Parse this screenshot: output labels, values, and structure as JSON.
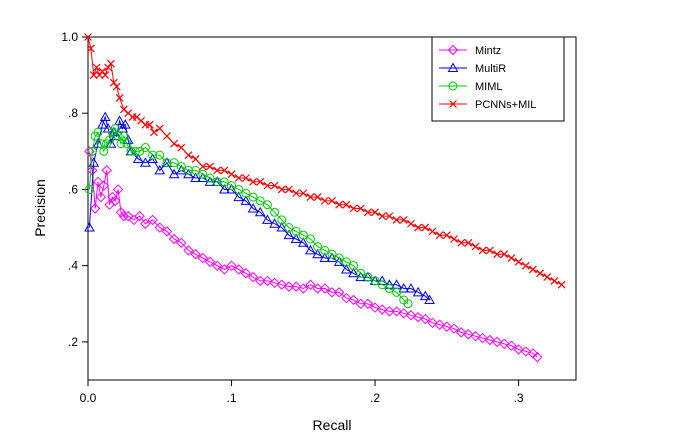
{
  "chart_data": {
    "type": "line",
    "xlabel": "Recall",
    "ylabel": "Precision",
    "xlim": [
      0,
      0.34
    ],
    "ylim": [
      0.1,
      1.0
    ],
    "xticks": [
      {
        "value": 0.0,
        "label": "0.0"
      },
      {
        "value": 0.1,
        "label": ".1"
      },
      {
        "value": 0.2,
        "label": ".2"
      },
      {
        "value": 0.3,
        "label": ".3"
      }
    ],
    "yticks": [
      {
        "value": 0.2,
        "label": ".2"
      },
      {
        "value": 0.4,
        "label": ".4"
      },
      {
        "value": 0.6,
        "label": ".6"
      },
      {
        "value": 0.8,
        "label": ".8"
      },
      {
        "value": 1.0,
        "label": "1.0"
      }
    ],
    "grid": false,
    "legend_position": "top-right",
    "series": [
      {
        "name": "Mintz",
        "color": "#ff00ff",
        "marker": "diamond",
        "x": [
          0.001,
          0.003,
          0.005,
          0.007,
          0.009,
          0.011,
          0.013,
          0.015,
          0.017,
          0.019,
          0.021,
          0.023,
          0.025,
          0.028,
          0.032,
          0.036,
          0.04,
          0.045,
          0.05,
          0.055,
          0.06,
          0.065,
          0.07,
          0.075,
          0.08,
          0.085,
          0.09,
          0.095,
          0.1,
          0.105,
          0.11,
          0.115,
          0.12,
          0.125,
          0.13,
          0.135,
          0.14,
          0.145,
          0.15,
          0.155,
          0.16,
          0.165,
          0.17,
          0.175,
          0.18,
          0.185,
          0.19,
          0.195,
          0.2,
          0.205,
          0.21,
          0.215,
          0.22,
          0.225,
          0.23,
          0.235,
          0.24,
          0.245,
          0.25,
          0.255,
          0.26,
          0.265,
          0.27,
          0.275,
          0.28,
          0.285,
          0.29,
          0.295,
          0.3,
          0.305,
          0.31,
          0.313
        ],
        "y": [
          0.7,
          0.65,
          0.55,
          0.62,
          0.58,
          0.61,
          0.65,
          0.56,
          0.58,
          0.57,
          0.6,
          0.54,
          0.53,
          0.53,
          0.52,
          0.53,
          0.51,
          0.52,
          0.5,
          0.49,
          0.47,
          0.46,
          0.44,
          0.43,
          0.42,
          0.41,
          0.4,
          0.39,
          0.4,
          0.39,
          0.38,
          0.37,
          0.36,
          0.36,
          0.355,
          0.35,
          0.345,
          0.345,
          0.34,
          0.35,
          0.34,
          0.34,
          0.33,
          0.33,
          0.315,
          0.31,
          0.3,
          0.3,
          0.29,
          0.285,
          0.28,
          0.28,
          0.275,
          0.27,
          0.265,
          0.26,
          0.25,
          0.245,
          0.24,
          0.235,
          0.225,
          0.22,
          0.215,
          0.21,
          0.205,
          0.2,
          0.195,
          0.19,
          0.18,
          0.175,
          0.17,
          0.16
        ]
      },
      {
        "name": "MultiR",
        "color": "#0000ff",
        "marker": "triangle",
        "x": [
          0.001,
          0.004,
          0.007,
          0.01,
          0.012,
          0.014,
          0.016,
          0.018,
          0.02,
          0.022,
          0.024,
          0.026,
          0.028,
          0.03,
          0.035,
          0.04,
          0.045,
          0.05,
          0.055,
          0.06,
          0.065,
          0.07,
          0.075,
          0.08,
          0.085,
          0.09,
          0.095,
          0.1,
          0.105,
          0.11,
          0.115,
          0.12,
          0.125,
          0.13,
          0.135,
          0.14,
          0.145,
          0.15,
          0.155,
          0.16,
          0.165,
          0.17,
          0.175,
          0.18,
          0.185,
          0.19,
          0.195,
          0.2,
          0.205,
          0.21,
          0.215,
          0.22,
          0.225,
          0.23,
          0.235,
          0.238
        ],
        "y": [
          0.5,
          0.67,
          0.72,
          0.77,
          0.79,
          0.76,
          0.72,
          0.75,
          0.74,
          0.78,
          0.76,
          0.77,
          0.73,
          0.7,
          0.68,
          0.67,
          0.68,
          0.65,
          0.67,
          0.64,
          0.65,
          0.64,
          0.63,
          0.63,
          0.62,
          0.62,
          0.6,
          0.6,
          0.58,
          0.57,
          0.55,
          0.54,
          0.52,
          0.51,
          0.5,
          0.48,
          0.47,
          0.46,
          0.44,
          0.43,
          0.42,
          0.42,
          0.41,
          0.39,
          0.38,
          0.37,
          0.37,
          0.36,
          0.36,
          0.35,
          0.35,
          0.34,
          0.34,
          0.33,
          0.32,
          0.31
        ]
      },
      {
        "name": "MIML",
        "color": "#00cc00",
        "marker": "circle",
        "x": [
          0.001,
          0.003,
          0.005,
          0.007,
          0.009,
          0.011,
          0.013,
          0.015,
          0.017,
          0.019,
          0.021,
          0.023,
          0.025,
          0.027,
          0.03,
          0.033,
          0.036,
          0.04,
          0.045,
          0.05,
          0.055,
          0.06,
          0.065,
          0.07,
          0.075,
          0.08,
          0.085,
          0.09,
          0.095,
          0.1,
          0.105,
          0.11,
          0.115,
          0.12,
          0.125,
          0.13,
          0.135,
          0.14,
          0.145,
          0.15,
          0.155,
          0.16,
          0.165,
          0.17,
          0.175,
          0.18,
          0.185,
          0.19,
          0.195,
          0.2,
          0.205,
          0.21,
          0.215,
          0.22,
          0.223
        ],
        "y": [
          0.6,
          0.7,
          0.74,
          0.75,
          0.72,
          0.7,
          0.72,
          0.73,
          0.75,
          0.76,
          0.74,
          0.72,
          0.74,
          0.72,
          0.7,
          0.7,
          0.7,
          0.71,
          0.69,
          0.69,
          0.67,
          0.67,
          0.66,
          0.65,
          0.65,
          0.64,
          0.63,
          0.62,
          0.62,
          0.61,
          0.6,
          0.59,
          0.58,
          0.57,
          0.56,
          0.54,
          0.52,
          0.5,
          0.49,
          0.48,
          0.47,
          0.45,
          0.44,
          0.43,
          0.42,
          0.41,
          0.4,
          0.38,
          0.37,
          0.36,
          0.35,
          0.34,
          0.33,
          0.31,
          0.3
        ]
      },
      {
        "name": "PCNNs+MIL",
        "color": "#ff0000",
        "marker": "x",
        "x": [
          0.0,
          0.002,
          0.004,
          0.006,
          0.008,
          0.01,
          0.012,
          0.014,
          0.016,
          0.018,
          0.02,
          0.022,
          0.025,
          0.028,
          0.031,
          0.034,
          0.037,
          0.04,
          0.043,
          0.046,
          0.05,
          0.055,
          0.06,
          0.065,
          0.07,
          0.075,
          0.08,
          0.085,
          0.09,
          0.095,
          0.1,
          0.105,
          0.11,
          0.115,
          0.12,
          0.125,
          0.13,
          0.135,
          0.14,
          0.145,
          0.15,
          0.155,
          0.16,
          0.165,
          0.17,
          0.175,
          0.18,
          0.185,
          0.19,
          0.195,
          0.2,
          0.205,
          0.21,
          0.215,
          0.22,
          0.225,
          0.23,
          0.235,
          0.24,
          0.245,
          0.25,
          0.255,
          0.26,
          0.265,
          0.27,
          0.275,
          0.28,
          0.285,
          0.29,
          0.295,
          0.3,
          0.305,
          0.31,
          0.315,
          0.32,
          0.325,
          0.33
        ],
        "y": [
          1.0,
          0.97,
          0.9,
          0.92,
          0.9,
          0.91,
          0.9,
          0.92,
          0.93,
          0.88,
          0.87,
          0.84,
          0.81,
          0.8,
          0.79,
          0.79,
          0.78,
          0.77,
          0.77,
          0.75,
          0.76,
          0.74,
          0.72,
          0.71,
          0.69,
          0.68,
          0.66,
          0.66,
          0.65,
          0.65,
          0.64,
          0.63,
          0.63,
          0.62,
          0.62,
          0.61,
          0.61,
          0.6,
          0.6,
          0.59,
          0.59,
          0.58,
          0.58,
          0.57,
          0.57,
          0.56,
          0.56,
          0.55,
          0.55,
          0.54,
          0.54,
          0.53,
          0.53,
          0.52,
          0.52,
          0.51,
          0.5,
          0.5,
          0.49,
          0.48,
          0.48,
          0.47,
          0.46,
          0.46,
          0.45,
          0.44,
          0.44,
          0.43,
          0.43,
          0.42,
          0.41,
          0.4,
          0.39,
          0.38,
          0.37,
          0.36,
          0.35
        ]
      }
    ]
  }
}
